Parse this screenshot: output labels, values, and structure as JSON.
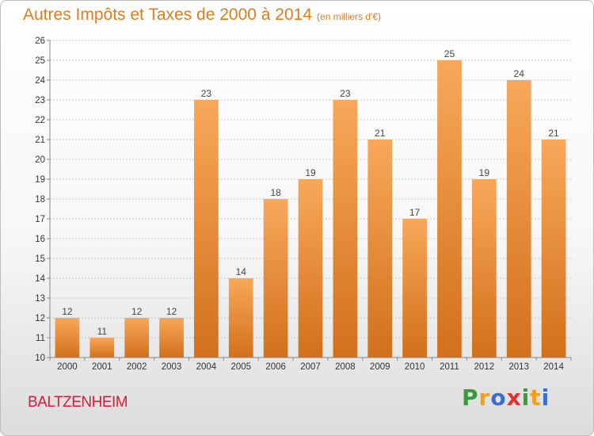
{
  "title": "Autres Impôts et Taxes de 2000 à 2014",
  "title_unit": "(en milliers d'€)",
  "place": "BALTZENHEIM",
  "logo": {
    "letters": [
      "P",
      "r",
      "o",
      "x",
      "i",
      "t",
      "i"
    ],
    "colors": [
      "#3a9a3a",
      "#f0a020",
      "#3a6fd0",
      "#e03030",
      "#3a9a3a",
      "#f0a020",
      "#3a6fd0"
    ]
  },
  "colors": {
    "title": "#e07c1c",
    "place": "#d2203c",
    "bar_top": "#f8a85a",
    "bar_bottom": "#d2701c"
  },
  "chart_data": {
    "type": "bar",
    "title": "Autres Impôts et Taxes de 2000 à 2014",
    "subtitle": "(en milliers d'€)",
    "categories": [
      "2000",
      "2001",
      "2002",
      "2003",
      "2004",
      "2005",
      "2006",
      "2007",
      "2008",
      "2009",
      "2010",
      "2011",
      "2012",
      "2013",
      "2014"
    ],
    "values": [
      12,
      11,
      12,
      12,
      23,
      14,
      18,
      19,
      23,
      21,
      17,
      25,
      19,
      24,
      21
    ],
    "ylim": [
      10,
      26
    ],
    "yticks": [
      10,
      11,
      12,
      13,
      14,
      15,
      16,
      17,
      18,
      19,
      20,
      21,
      22,
      23,
      24,
      25,
      26
    ],
    "grid": true,
    "xlabel": "",
    "ylabel": ""
  }
}
